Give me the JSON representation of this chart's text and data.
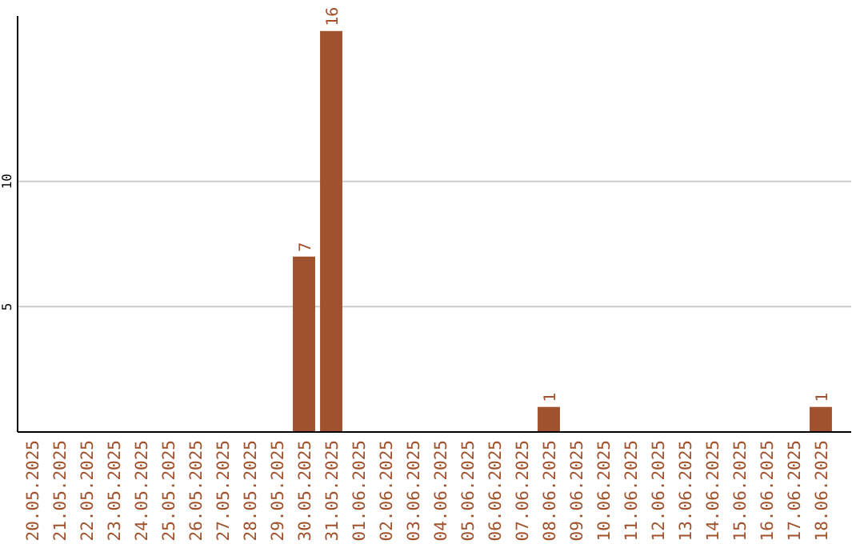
{
  "chart_data": {
    "type": "bar",
    "categories": [
      "20.05.2025",
      "21.05.2025",
      "22.05.2025",
      "23.05.2025",
      "24.05.2025",
      "25.05.2025",
      "26.05.2025",
      "27.05.2025",
      "28.05.2025",
      "29.05.2025",
      "30.05.2025",
      "31.05.2025",
      "01.06.2025",
      "02.06.2025",
      "03.06.2025",
      "04.06.2025",
      "05.06.2025",
      "06.06.2025",
      "07.06.2025",
      "08.06.2025",
      "09.06.2025",
      "10.06.2025",
      "11.06.2025",
      "12.06.2025",
      "13.06.2025",
      "14.06.2025",
      "15.06.2025",
      "16.06.2025",
      "17.06.2025",
      "18.06.2025"
    ],
    "values": [
      0,
      0,
      0,
      0,
      0,
      0,
      0,
      0,
      0,
      0,
      7,
      16,
      0,
      0,
      0,
      0,
      0,
      0,
      0,
      1,
      0,
      0,
      0,
      0,
      0,
      0,
      0,
      0,
      0,
      1
    ],
    "value_labels": [
      null,
      null,
      null,
      null,
      null,
      null,
      null,
      null,
      null,
      null,
      "7",
      "16",
      null,
      null,
      null,
      null,
      null,
      null,
      null,
      "1",
      null,
      null,
      null,
      null,
      null,
      null,
      null,
      null,
      null,
      "1"
    ],
    "color": "#a0522d",
    "ylim": [
      0,
      16.6
    ],
    "yticks": [
      5,
      10
    ],
    "grid": "y"
  }
}
